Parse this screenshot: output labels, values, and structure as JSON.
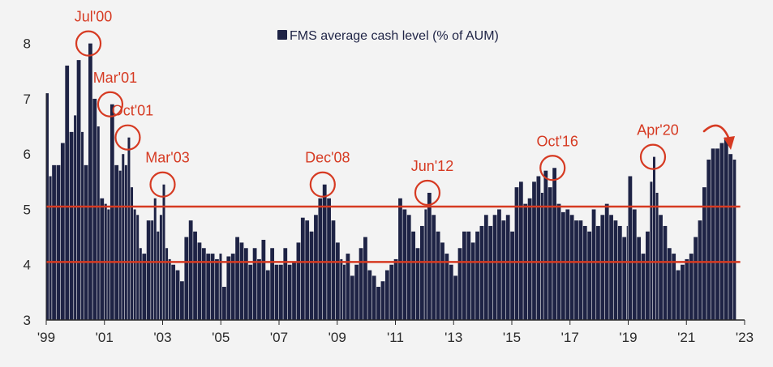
{
  "chart_data": {
    "type": "bar",
    "title": "",
    "legend": {
      "label": "FMS average cash level (% of AUM)",
      "placement": "top-center"
    },
    "xlabel": "",
    "ylabel": "",
    "ylim": [
      3,
      8.2
    ],
    "y_ticks": [
      "3",
      "4",
      "5",
      "6",
      "7",
      "8"
    ],
    "x_ticks": [
      {
        "t": 1999.0,
        "label": "'99"
      },
      {
        "t": 2001.0,
        "label": "'01"
      },
      {
        "t": 2003.0,
        "label": "'03"
      },
      {
        "t": 2005.0,
        "label": "'05"
      },
      {
        "t": 2007.0,
        "label": "'07"
      },
      {
        "t": 2009.0,
        "label": "'09"
      },
      {
        "t": 2011.0,
        "label": "'11"
      },
      {
        "t": 2013.0,
        "label": "'13"
      },
      {
        "t": 2015.0,
        "label": "'15"
      },
      {
        "t": 2017.0,
        "label": "'17"
      },
      {
        "t": 2019.0,
        "label": "'19"
      },
      {
        "t": 2021.0,
        "label": "'21"
      },
      {
        "t": 2023.0,
        "label": "'23"
      }
    ],
    "xlim": [
      1999.0,
      2023.0
    ],
    "reference_lines": [
      5.05,
      4.05
    ],
    "series": [
      {
        "color": "#1e2345",
        "points": [
          [
            1999.0,
            7.1
          ],
          [
            1999.1,
            5.6
          ],
          [
            1999.2,
            5.8
          ],
          [
            1999.35,
            5.8
          ],
          [
            1999.5,
            6.2
          ],
          [
            1999.65,
            7.6
          ],
          [
            1999.8,
            6.4
          ],
          [
            1999.95,
            6.7
          ],
          [
            2000.05,
            7.7
          ],
          [
            2000.2,
            6.4
          ],
          [
            2000.3,
            5.8
          ],
          [
            2000.45,
            8.0
          ],
          [
            2000.6,
            7.0
          ],
          [
            2000.75,
            6.5
          ],
          [
            2000.85,
            5.2
          ],
          [
            2001.0,
            5.1
          ],
          [
            2001.1,
            5.0
          ],
          [
            2001.2,
            6.9
          ],
          [
            2001.35,
            5.8
          ],
          [
            2001.5,
            5.7
          ],
          [
            2001.6,
            6.0
          ],
          [
            2001.7,
            5.8
          ],
          [
            2001.8,
            6.3
          ],
          [
            2001.9,
            5.4
          ],
          [
            2002.0,
            5.0
          ],
          [
            2002.1,
            4.9
          ],
          [
            2002.2,
            4.3
          ],
          [
            2002.3,
            4.2
          ],
          [
            2002.45,
            4.8
          ],
          [
            2002.6,
            4.8
          ],
          [
            2002.7,
            5.2
          ],
          [
            2002.8,
            4.6
          ],
          [
            2002.9,
            4.9
          ],
          [
            2003.0,
            5.45
          ],
          [
            2003.1,
            4.3
          ],
          [
            2003.2,
            4.1
          ],
          [
            2003.3,
            4.0
          ],
          [
            2003.45,
            3.9
          ],
          [
            2003.6,
            3.7
          ],
          [
            2003.75,
            4.5
          ],
          [
            2003.9,
            4.8
          ],
          [
            2004.05,
            4.6
          ],
          [
            2004.2,
            4.4
          ],
          [
            2004.35,
            4.3
          ],
          [
            2004.5,
            4.2
          ],
          [
            2004.65,
            4.2
          ],
          [
            2004.8,
            4.1
          ],
          [
            2004.95,
            4.2
          ],
          [
            2005.05,
            3.6
          ],
          [
            2005.2,
            4.15
          ],
          [
            2005.35,
            4.2
          ],
          [
            2005.5,
            4.5
          ],
          [
            2005.65,
            4.4
          ],
          [
            2005.8,
            4.3
          ],
          [
            2005.95,
            4.0
          ],
          [
            2006.1,
            4.3
          ],
          [
            2006.25,
            4.1
          ],
          [
            2006.4,
            4.45
          ],
          [
            2006.55,
            3.9
          ],
          [
            2006.7,
            4.3
          ],
          [
            2006.85,
            4.0
          ],
          [
            2007.0,
            4.0
          ],
          [
            2007.15,
            4.3
          ],
          [
            2007.3,
            4.0
          ],
          [
            2007.45,
            4.05
          ],
          [
            2007.6,
            4.4
          ],
          [
            2007.75,
            4.85
          ],
          [
            2007.9,
            4.8
          ],
          [
            2008.05,
            4.6
          ],
          [
            2008.2,
            4.9
          ],
          [
            2008.35,
            5.2
          ],
          [
            2008.5,
            5.45
          ],
          [
            2008.65,
            5.2
          ],
          [
            2008.8,
            4.8
          ],
          [
            2008.95,
            4.4
          ],
          [
            2009.1,
            4.1
          ],
          [
            2009.2,
            4.0
          ],
          [
            2009.3,
            4.2
          ],
          [
            2009.45,
            3.8
          ],
          [
            2009.6,
            4.0
          ],
          [
            2009.75,
            4.3
          ],
          [
            2009.9,
            4.5
          ],
          [
            2010.05,
            3.9
          ],
          [
            2010.2,
            3.8
          ],
          [
            2010.35,
            3.6
          ],
          [
            2010.5,
            3.7
          ],
          [
            2010.65,
            3.9
          ],
          [
            2010.8,
            4.0
          ],
          [
            2010.95,
            4.1
          ],
          [
            2011.1,
            5.2
          ],
          [
            2011.25,
            5.0
          ],
          [
            2011.4,
            4.9
          ],
          [
            2011.55,
            4.6
          ],
          [
            2011.7,
            4.3
          ],
          [
            2011.85,
            4.7
          ],
          [
            2012.0,
            5.0
          ],
          [
            2012.1,
            5.3
          ],
          [
            2012.25,
            4.9
          ],
          [
            2012.4,
            4.6
          ],
          [
            2012.55,
            4.4
          ],
          [
            2012.7,
            4.2
          ],
          [
            2012.85,
            4.0
          ],
          [
            2013.0,
            3.8
          ],
          [
            2013.15,
            4.3
          ],
          [
            2013.3,
            4.6
          ],
          [
            2013.45,
            4.6
          ],
          [
            2013.6,
            4.4
          ],
          [
            2013.75,
            4.6
          ],
          [
            2013.9,
            4.7
          ],
          [
            2014.05,
            4.9
          ],
          [
            2014.2,
            4.7
          ],
          [
            2014.35,
            4.9
          ],
          [
            2014.5,
            5.0
          ],
          [
            2014.65,
            4.8
          ],
          [
            2014.8,
            4.9
          ],
          [
            2014.95,
            4.6
          ],
          [
            2015.1,
            5.4
          ],
          [
            2015.25,
            5.5
          ],
          [
            2015.4,
            5.1
          ],
          [
            2015.55,
            5.2
          ],
          [
            2015.7,
            5.5
          ],
          [
            2015.85,
            5.6
          ],
          [
            2016.0,
            5.3
          ],
          [
            2016.1,
            5.7
          ],
          [
            2016.25,
            5.4
          ],
          [
            2016.4,
            5.75
          ],
          [
            2016.55,
            5.1
          ],
          [
            2016.7,
            4.95
          ],
          [
            2016.85,
            5.0
          ],
          [
            2017.0,
            4.9
          ],
          [
            2017.15,
            4.8
          ],
          [
            2017.3,
            4.8
          ],
          [
            2017.45,
            4.7
          ],
          [
            2017.6,
            4.6
          ],
          [
            2017.75,
            5.0
          ],
          [
            2017.9,
            4.7
          ],
          [
            2018.05,
            4.9
          ],
          [
            2018.2,
            5.1
          ],
          [
            2018.35,
            4.9
          ],
          [
            2018.5,
            4.8
          ],
          [
            2018.65,
            4.7
          ],
          [
            2018.8,
            4.5
          ],
          [
            2018.95,
            4.7
          ],
          [
            2019.0,
            5.6
          ],
          [
            2019.15,
            5.0
          ],
          [
            2019.3,
            4.5
          ],
          [
            2019.45,
            4.2
          ],
          [
            2019.6,
            4.6
          ],
          [
            2019.75,
            5.5
          ],
          [
            2019.85,
            5.95
          ],
          [
            2019.95,
            5.3
          ],
          [
            2020.05,
            4.9
          ],
          [
            2020.2,
            4.7
          ],
          [
            2020.35,
            4.3
          ],
          [
            2020.5,
            4.2
          ],
          [
            2020.65,
            3.9
          ],
          [
            2020.8,
            4.0
          ],
          [
            2020.95,
            4.1
          ],
          [
            2021.1,
            4.2
          ],
          [
            2021.25,
            4.5
          ],
          [
            2021.4,
            4.8
          ],
          [
            2021.55,
            5.4
          ],
          [
            2021.7,
            5.9
          ],
          [
            2021.85,
            6.1
          ],
          [
            2022.0,
            6.1
          ],
          [
            2022.15,
            6.2
          ],
          [
            2022.3,
            6.3
          ],
          [
            2022.45,
            6.0
          ],
          [
            2022.6,
            5.9
          ]
        ]
      }
    ],
    "annotations": [
      {
        "label": "Jul'00",
        "x": 2000.45,
        "y": 8.0
      },
      {
        "label": "Mar'01",
        "x": 2001.2,
        "y": 6.9
      },
      {
        "label": "Oct'01",
        "x": 2001.8,
        "y": 6.3
      },
      {
        "label": "Mar'03",
        "x": 2003.0,
        "y": 5.45
      },
      {
        "label": "Dec'08",
        "x": 2008.5,
        "y": 5.45
      },
      {
        "label": "Jun'12",
        "x": 2012.1,
        "y": 5.3
      },
      {
        "label": "Oct'16",
        "x": 2016.4,
        "y": 5.75
      },
      {
        "label": "Apr'20",
        "x": 2019.85,
        "y": 5.95
      }
    ],
    "colors": {
      "bars": "#1e2345",
      "accent": "#d63a22",
      "axis": "#2a2a2a",
      "background": "#f3f3f3"
    }
  }
}
